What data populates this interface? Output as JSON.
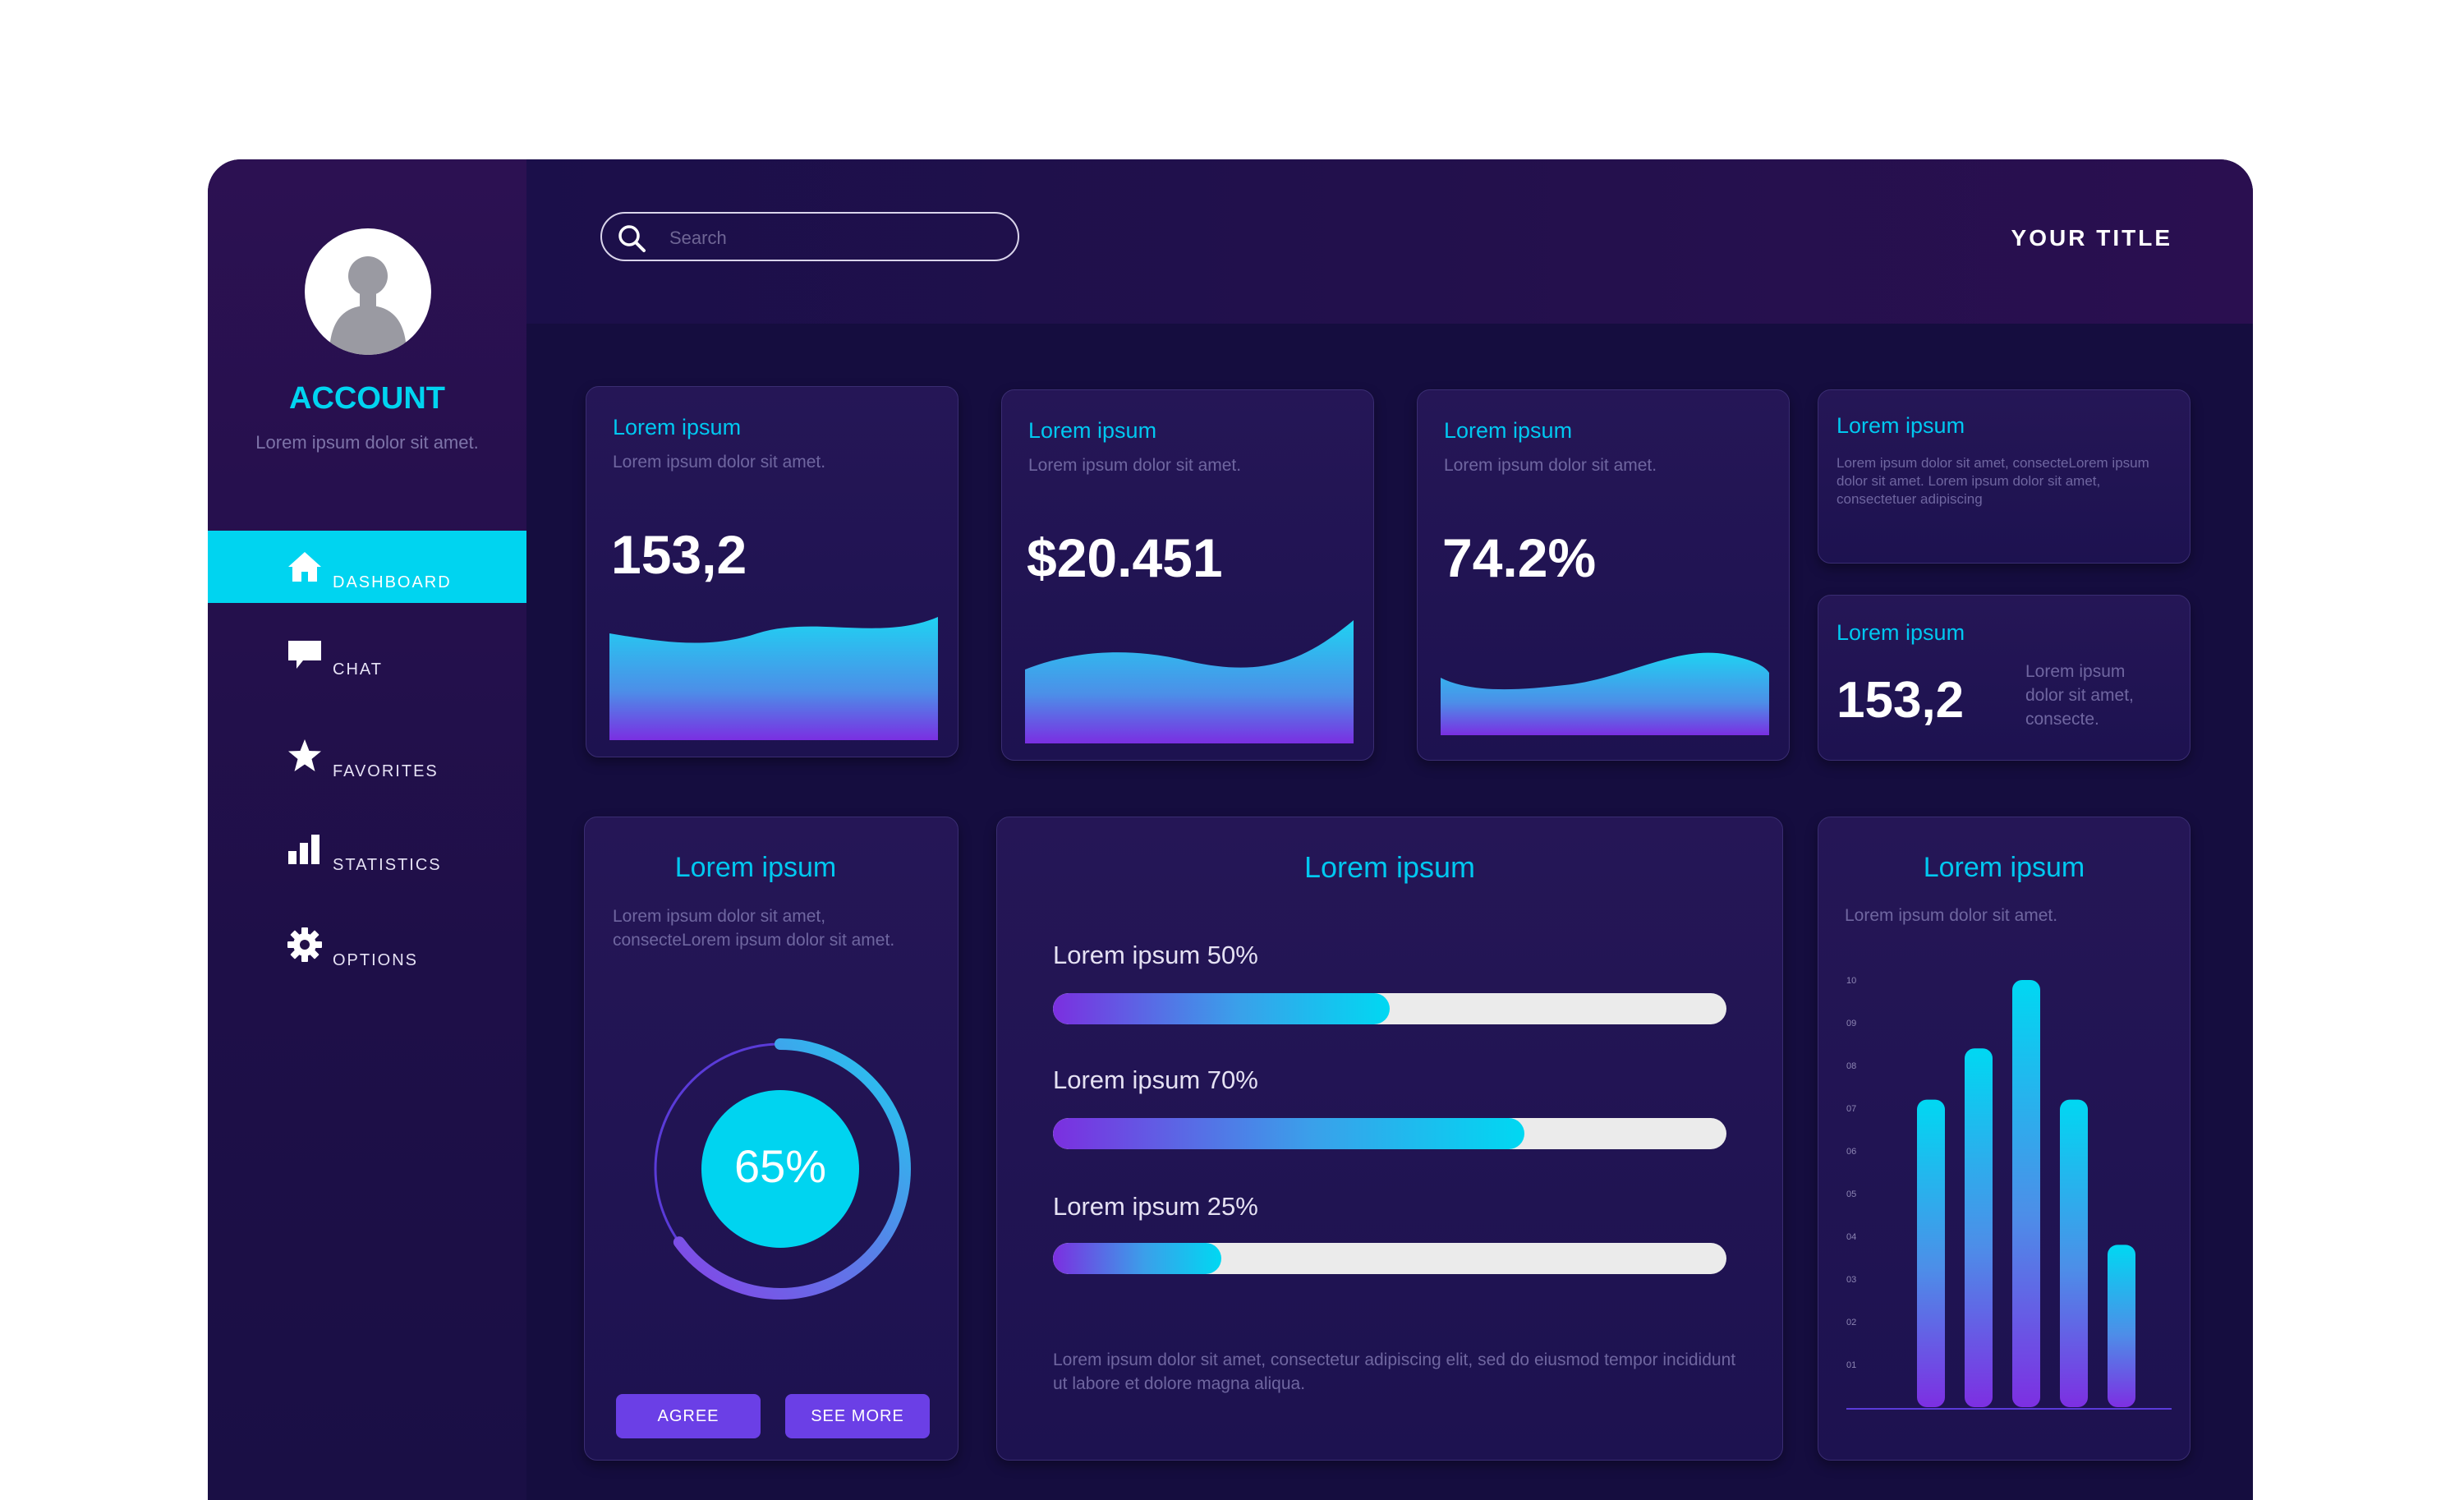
{
  "sidebar": {
    "account_title": "ACCOUNT",
    "account_sub": "Lorem ipsum dolor sit amet.",
    "items": [
      {
        "label": "DASHBOARD",
        "icon": "home-icon",
        "active": true
      },
      {
        "label": "CHAT",
        "icon": "chat-icon",
        "active": false
      },
      {
        "label": "FAVORITES",
        "icon": "star-icon",
        "active": false
      },
      {
        "label": "STATISTICS",
        "icon": "bar-chart-icon",
        "active": false
      },
      {
        "label": "OPTIONS",
        "icon": "gear-icon",
        "active": false
      }
    ]
  },
  "header": {
    "search_placeholder": "Search",
    "title": "YOUR TITLE"
  },
  "stat_cards": [
    {
      "title": "Lorem ipsum",
      "sub": "Lorem ipsum dolor sit amet.",
      "value": "153,2"
    },
    {
      "title": "Lorem ipsum",
      "sub": "Lorem ipsum dolor sit amet.",
      "value": "$20.451"
    },
    {
      "title": "Lorem ipsum",
      "sub": "Lorem ipsum dolor sit amet.",
      "value": "74.2%"
    }
  ],
  "info_card": {
    "title": "Lorem ipsum",
    "text": "Lorem ipsum dolor sit amet, consecteLorem ipsum dolor sit amet. Lorem ipsum dolor sit amet, consectetuer adipiscing"
  },
  "small_stat_card": {
    "title": "Lorem ipsum",
    "value": "153,2",
    "side_text": "Lorem ipsum dolor sit amet, consecte."
  },
  "donut_card": {
    "title": "Lorem ipsum",
    "text": "Lorem ipsum dolor sit amet, consecteLorem ipsum dolor sit amet.",
    "percent_label": "65%",
    "percent": 65,
    "buttons": {
      "agree": "AGREE",
      "see_more": "SEE MORE"
    }
  },
  "progress_card": {
    "title": "Lorem ipsum",
    "bars": [
      {
        "label": "Lorem ipsum 50%",
        "value": 50
      },
      {
        "label": "Lorem ipsum 70%",
        "value": 70
      },
      {
        "label": "Lorem ipsum 25%",
        "value": 25
      }
    ],
    "footer": "Lorem ipsum dolor sit amet, consectetur adipiscing elit, sed do eiusmod tempor incididunt ut labore et dolore magna aliqua."
  },
  "bar_card": {
    "title": "Lorem ipsum",
    "sub": "Lorem ipsum dolor sit amet."
  },
  "chart_data": {
    "type": "bar",
    "categories": [
      "",
      "",
      "",
      "",
      ""
    ],
    "values": [
      7.2,
      8.4,
      10,
      7.2,
      3.8
    ],
    "ylim": [
      0,
      10
    ],
    "yticks": [
      "10",
      "09",
      "08",
      "07",
      "06",
      "05",
      "04",
      "03",
      "02",
      "01"
    ],
    "grid": false
  },
  "colors": {
    "accent": "#00d4f0",
    "purple": "#6b3fe6",
    "background": "#1a1040"
  }
}
